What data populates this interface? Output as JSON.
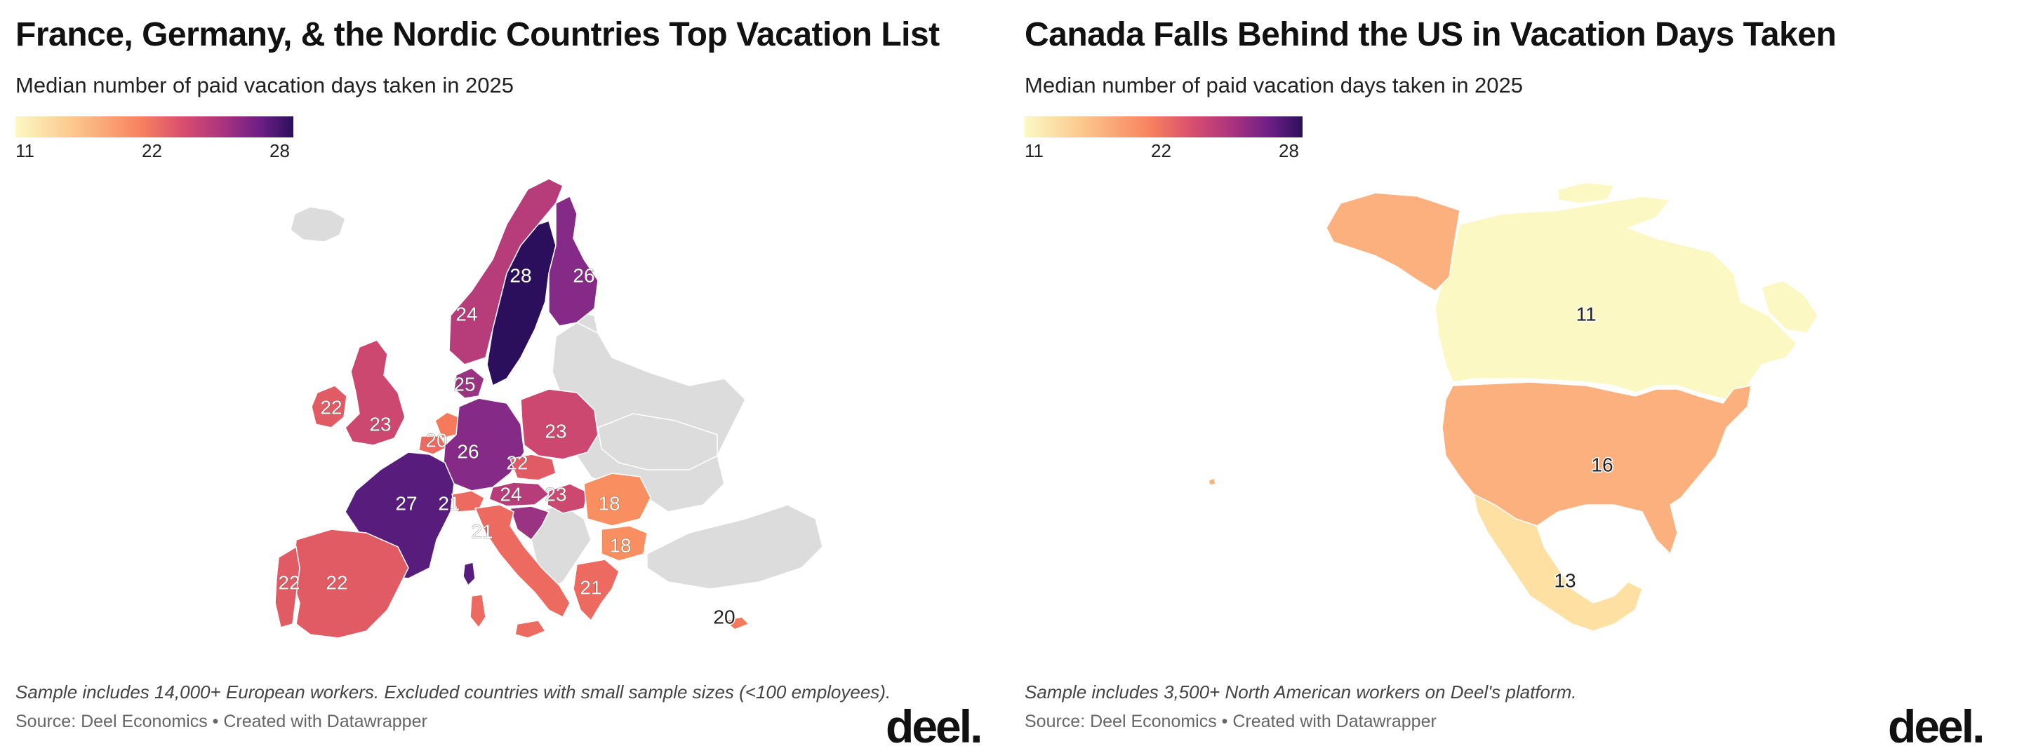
{
  "colors": {
    "c11": "#fcf8c4",
    "c13": "#fde0a2",
    "c16": "#fcb07d",
    "c18": "#f98e61",
    "c20": "#f57a5c",
    "c21": "#ec6a5f",
    "c22": "#e15b64",
    "c23": "#cc4871",
    "c24": "#b63c7a",
    "c25": "#9b3383",
    "c26": "#852a86",
    "c27": "#581c7c",
    "c28": "#2c0f5c",
    "nodata": "#dcdcdc"
  },
  "europe": {
    "title": "France, Germany, & the Nordic Countries Top Vacation List",
    "subtitle": "Median number of paid vacation days taken in 2025",
    "legend": {
      "min": "11",
      "mid": "22",
      "max": "28"
    },
    "footnote": "Sample includes 14,000+ European workers. Excluded countries with small sample sizes (<100 employees).",
    "source": "Source: Deel Economics • Created with Datawrapper",
    "logo": "deel.",
    "chart_data": {
      "type": "choropleth",
      "metric": "Median number of paid vacation days taken in 2025",
      "scale": [
        11,
        28
      ],
      "regions": [
        {
          "label": "28",
          "value": 28
        },
        {
          "label": "26",
          "value": 26
        },
        {
          "label": "24",
          "value": 24
        },
        {
          "label": "25",
          "value": 25
        },
        {
          "label": "22",
          "value": 22
        },
        {
          "label": "23",
          "value": 23
        },
        {
          "label": "20",
          "value": 20
        },
        {
          "label": "26",
          "value": 26
        },
        {
          "label": "23",
          "value": 23
        },
        {
          "label": "22",
          "value": 22
        },
        {
          "label": "27",
          "value": 27
        },
        {
          "label": "21",
          "value": 21
        },
        {
          "label": "24",
          "value": 24
        },
        {
          "label": "23",
          "value": 23
        },
        {
          "label": "18",
          "value": 18
        },
        {
          "label": "21",
          "value": 21
        },
        {
          "label": "18",
          "value": 18
        },
        {
          "label": "22",
          "value": 22
        },
        {
          "label": "22",
          "value": 22
        },
        {
          "label": "21",
          "value": 21
        },
        {
          "label": "20",
          "value": 20
        }
      ]
    }
  },
  "northamerica": {
    "title": "Canada Falls Behind the US in Vacation Days Taken",
    "subtitle": "Median number of paid vacation days taken in 2025",
    "legend": {
      "min": "11",
      "mid": "22",
      "max": "28"
    },
    "footnote": "Sample includes 3,500+ North American workers on Deel's platform.",
    "source": "Source: Deel Economics • Created with Datawrapper",
    "logo": "deel.",
    "chart_data": {
      "type": "choropleth",
      "metric": "Median number of paid vacation days taken in 2025",
      "scale": [
        11,
        28
      ],
      "regions": [
        {
          "label": "11",
          "value": 11
        },
        {
          "label": "16",
          "value": 16
        },
        {
          "label": "13",
          "value": 13
        }
      ]
    }
  }
}
